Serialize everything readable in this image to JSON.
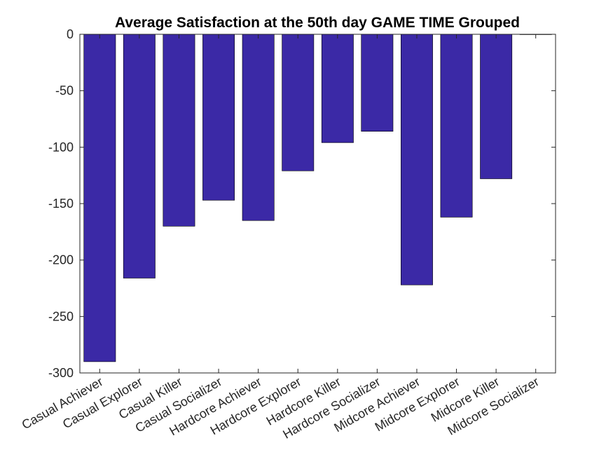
{
  "chart_data": {
    "type": "bar",
    "title": "Average Satisfaction at the 50th day GAME TIME Grouped",
    "xlabel": "",
    "ylabel": "",
    "categories": [
      "Casual Achiever",
      "Casual Explorer",
      "Casual Killer",
      "Casual Socializer",
      "Hardcore Achiever",
      "Hardcore Explorer",
      "Hardcore Killer",
      "Hardcore Socializer",
      "Midcore Achiever",
      "Midcore Explorer",
      "Midcore Killer",
      "Midcore Socializer"
    ],
    "values": [
      -290,
      -216,
      -170,
      -147,
      -165,
      -121,
      -96,
      -86,
      -222,
      -162,
      -128,
      0
    ],
    "ylim": [
      -300,
      0
    ],
    "yticks": [
      0,
      -50,
      -100,
      -150,
      -200,
      -250,
      -300
    ],
    "grid": false,
    "colors": {
      "bar": "#3b29a6",
      "axis": "#262626"
    }
  }
}
